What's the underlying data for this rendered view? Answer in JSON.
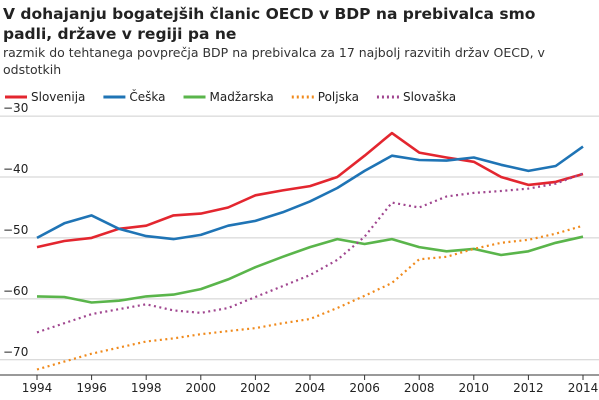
{
  "chart_data": {
    "type": "line",
    "title": "V dohajanju bogatejših članic OECD v BDP na prebivalca smo padli, države v regiji pa ne",
    "subtitle": "razmik do tehtanega povprečja BDP na prebivalca za 17 najbolj razvitih držav OECD, v odstotkih",
    "x": [
      1994,
      1995,
      1996,
      1997,
      1998,
      1999,
      2000,
      2001,
      2002,
      2003,
      2004,
      2005,
      2006,
      2007,
      2008,
      2009,
      2010,
      2011,
      2012,
      2013,
      2014
    ],
    "series": [
      {
        "name": "Slovenija",
        "color": "#e3262f",
        "style": "solid",
        "values": [
          -51.5,
          -50.5,
          -50,
          -48.5,
          -48,
          -46.3,
          -46,
          -45,
          -43,
          -42.2,
          -41.5,
          -40,
          -36.5,
          -32.8,
          -36,
          -36.8,
          -37.5,
          -40,
          -41.3,
          -40.8,
          -39.5
        ]
      },
      {
        "name": "Češka",
        "color": "#1f74b5",
        "style": "solid",
        "values": [
          -50,
          -47.6,
          -46.3,
          -48.5,
          -49.7,
          -50.2,
          -49.5,
          -48,
          -47.2,
          -45.8,
          -44,
          -41.8,
          -39,
          -36.5,
          -37.2,
          -37.3,
          -36.8,
          -38,
          -39,
          -38.2,
          -35
        ]
      },
      {
        "name": "Madžarska",
        "color": "#5ab54b",
        "style": "solid",
        "values": [
          -59.6,
          -59.7,
          -60.6,
          -60.3,
          -59.6,
          -59.3,
          -58.4,
          -56.8,
          -54.8,
          -53.1,
          -51.5,
          -50.2,
          -51,
          -50.2,
          -51.5,
          -52.2,
          -51.8,
          -52.8,
          -52.2,
          -50.8,
          -49.8
        ]
      },
      {
        "name": "Poljska",
        "color": "#f08a1c",
        "style": "dotted",
        "values": [
          -71.6,
          -70.3,
          -69,
          -68,
          -67,
          -66.5,
          -65.8,
          -65.3,
          -64.8,
          -64,
          -63.3,
          -61.5,
          -59.5,
          -57.4,
          -53.5,
          -53.1,
          -51.8,
          -50.8,
          -50.3,
          -49.3,
          -48
        ]
      },
      {
        "name": "Slovaška",
        "color": "#a0468f",
        "style": "dotted",
        "values": [
          -65.5,
          -64,
          -62.5,
          -61.7,
          -60.9,
          -61.9,
          -62.3,
          -61.5,
          -59.7,
          -57.9,
          -56.1,
          -53.6,
          -49.8,
          -44.2,
          -45,
          -43.2,
          -42.6,
          -42.3,
          -41.9,
          -41.1,
          -39.4
        ]
      }
    ],
    "xlim": [
      1994,
      2014
    ],
    "xticks": [
      1994,
      1996,
      1998,
      2000,
      2002,
      2004,
      2006,
      2008,
      2010,
      2012,
      2014
    ],
    "ylim": [
      -72.5,
      -29
    ],
    "yticks": [
      {
        "value": -70,
        "label": "−70"
      },
      {
        "value": -60,
        "label": "−60"
      },
      {
        "value": -50,
        "label": "−50"
      },
      {
        "value": -40,
        "label": "−40"
      },
      {
        "value": -30,
        "label": "−30"
      }
    ],
    "grid": true
  }
}
